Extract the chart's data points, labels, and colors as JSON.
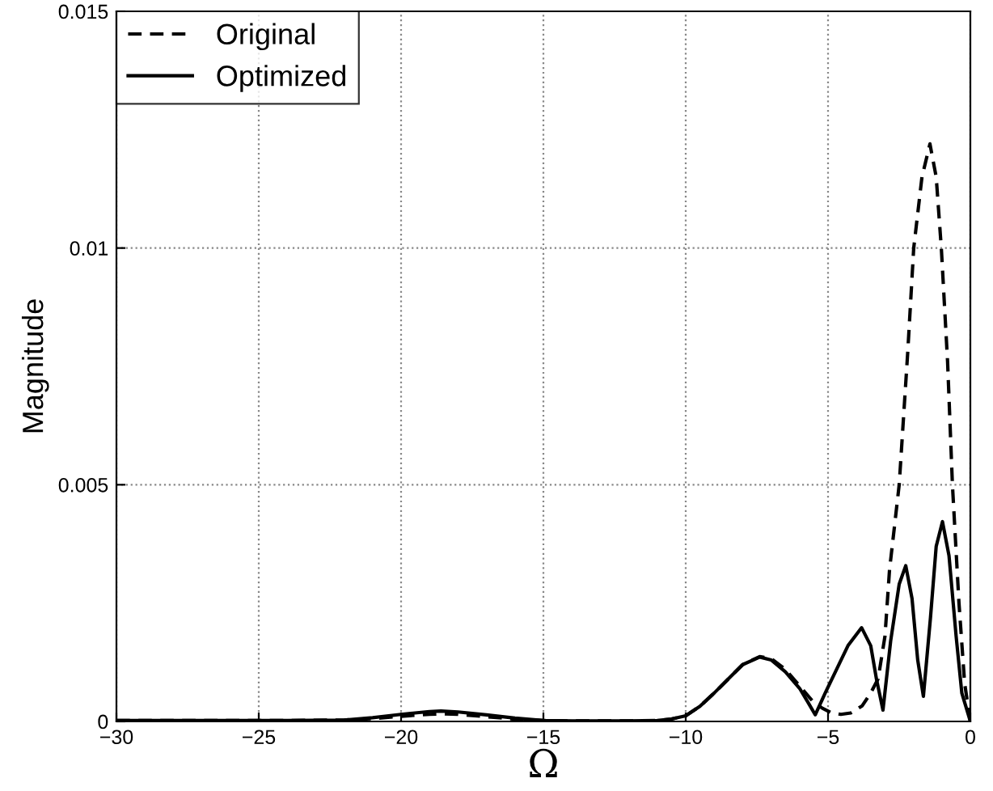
{
  "chart_data": {
    "type": "line",
    "xlabel": "Ω",
    "ylabel": "Magnitude",
    "xlim": [
      -30,
      0
    ],
    "ylim": [
      0,
      0.015
    ],
    "xticks": [
      {
        "value": -30,
        "label": "−30"
      },
      {
        "value": -25,
        "label": "−25"
      },
      {
        "value": -20,
        "label": "−20"
      },
      {
        "value": -15,
        "label": "−15"
      },
      {
        "value": -10,
        "label": "−10"
      },
      {
        "value": -5,
        "label": "−5"
      },
      0
    ],
    "yticks": [
      0,
      0.005,
      0.01,
      0.015
    ],
    "grid": true,
    "legend": "top left",
    "series": [
      {
        "name": "Original",
        "color": "#000000",
        "line_style": "dashed",
        "x": [
          -30,
          -24,
          -22,
          -21,
          -20,
          -19,
          -18.5,
          -18,
          -17,
          -16,
          -15,
          -14,
          -12,
          -11,
          -10.5,
          -10,
          -9.5,
          -9,
          -8.5,
          -8,
          -7.4,
          -7,
          -6.5,
          -6,
          -5.5,
          -5.2,
          -4.9,
          -4.55,
          -4.2,
          -3.8,
          -3.5,
          -3.24,
          -3.0,
          -2.84,
          -2.5,
          -2.2,
          -1.99,
          -1.7,
          -1.42,
          -1.2,
          -1.02,
          -0.8,
          -0.63,
          -0.4,
          -0.2,
          0
        ],
        "values": [
          2e-05,
          2e-05,
          3e-05,
          6e-05,
          0.00011,
          0.00015,
          0.00016,
          0.00015,
          0.0001,
          5e-05,
          2e-05,
          1e-05,
          1e-05,
          2e-05,
          5e-05,
          0.00012,
          0.00032,
          0.0006,
          0.0009,
          0.0012,
          0.00137,
          0.00133,
          0.0011,
          0.00075,
          0.0004,
          0.00028,
          0.00019,
          0.00015,
          0.00018,
          0.00033,
          0.0006,
          0.0009,
          0.0018,
          0.0032,
          0.005,
          0.0078,
          0.01,
          0.0115,
          0.0122,
          0.0115,
          0.01,
          0.0076,
          0.005,
          0.0025,
          0.0008,
          0
        ]
      },
      {
        "name": "Optimized",
        "color": "#000000",
        "line_style": "solid",
        "x": [
          -30,
          -24,
          -22,
          -21,
          -20,
          -19,
          -18.6,
          -18,
          -17,
          -16,
          -15,
          -14,
          -12,
          -11,
          -10.5,
          -10,
          -9.5,
          -9,
          -8.5,
          -8,
          -7.4,
          -7,
          -6.5,
          -6,
          -5.7,
          -5.45,
          -5.1,
          -4.7,
          -4.3,
          -3.82,
          -3.5,
          -3.3,
          -3.07,
          -2.8,
          -2.5,
          -2.27,
          -2.05,
          -1.85,
          -1.65,
          -1.4,
          -1.2,
          -0.98,
          -0.75,
          -0.5,
          -0.3,
          0
        ],
        "values": [
          2e-05,
          2e-05,
          3e-05,
          8e-05,
          0.00015,
          0.00021,
          0.00022,
          0.0002,
          0.00014,
          7e-05,
          2e-05,
          1e-05,
          1e-05,
          2e-05,
          5e-05,
          0.00012,
          0.00032,
          0.0006,
          0.0009,
          0.0012,
          0.00136,
          0.0013,
          0.00105,
          0.0007,
          0.0004,
          0.00014,
          0.0006,
          0.0011,
          0.0016,
          0.00198,
          0.0016,
          0.0009,
          0.00024,
          0.0017,
          0.0029,
          0.00329,
          0.0026,
          0.0013,
          0.00053,
          0.0022,
          0.0037,
          0.00422,
          0.0035,
          0.0018,
          0.0006,
          0
        ]
      }
    ]
  }
}
